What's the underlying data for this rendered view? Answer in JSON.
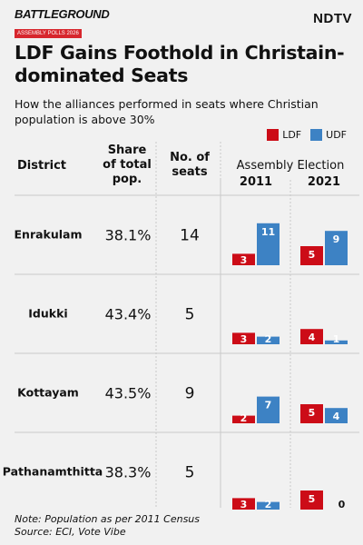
{
  "header": {
    "logo_text": "BATTLEGROUND",
    "logo_sub": "ASSEMBLY POLLS 2026",
    "brand": "NDTV"
  },
  "title": "LDF Gains Foothold in Christain-dominated Seats",
  "subtitle": "How the alliances performed in seats where Christian population is above 30%",
  "legend": [
    {
      "name": "LDF",
      "color": "#cc0c17"
    },
    {
      "name": "UDF",
      "color": "#3d82c4"
    }
  ],
  "table": {
    "col_district": "District",
    "col_share": [
      "Share",
      "of total",
      "pop."
    ],
    "col_seats": [
      "No. of",
      "seats"
    ],
    "col_election": "Assembly Election",
    "years": [
      "2011",
      "2021"
    ]
  },
  "chart_data": {
    "type": "bar",
    "categories": [
      "Enrakulam",
      "Idukki",
      "Kottayam",
      "Pathanamthitta"
    ],
    "share": [
      "38.1%",
      "43.4%",
      "43.5%",
      "38.3%"
    ],
    "seats": [
      14,
      5,
      9,
      5
    ],
    "years": [
      "2011",
      "2021"
    ],
    "series": [
      {
        "name": "LDF",
        "values_2011": [
          3,
          3,
          2,
          3
        ],
        "values_2021": [
          5,
          4,
          5,
          5
        ]
      },
      {
        "name": "UDF",
        "values_2011": [
          11,
          2,
          7,
          2
        ],
        "values_2021": [
          9,
          1,
          4,
          0
        ]
      }
    ]
  },
  "note": "Note: Population as per 2011 Census",
  "source": "Source: ECI, Vote Vibe"
}
